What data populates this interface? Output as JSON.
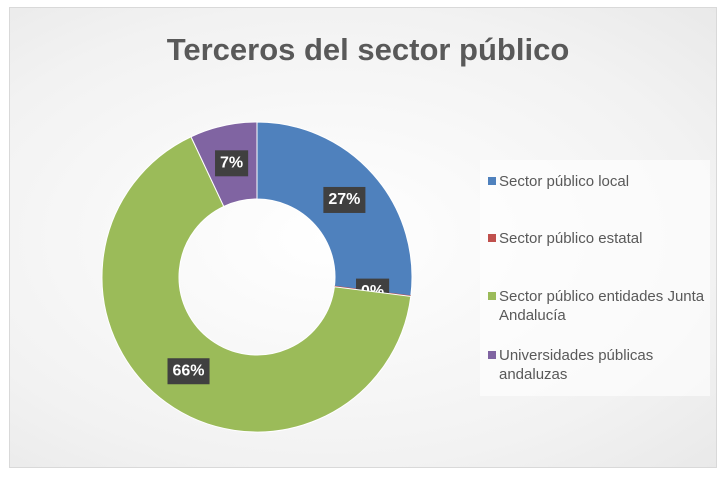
{
  "chart_data": {
    "type": "donut",
    "title": "Terceros del sector público",
    "categories": [
      "Sector público local",
      "Sector público estatal",
      "Sector público entidades Junta Andalucía",
      "Universidades públicas andaluzas"
    ],
    "values": [
      27,
      0,
      66,
      7
    ],
    "value_labels": [
      "27%",
      "0%",
      "66%",
      "7%"
    ],
    "colors": [
      "#4f81bd",
      "#c0504d",
      "#9bbb59",
      "#8064a2"
    ],
    "legend": "right"
  }
}
